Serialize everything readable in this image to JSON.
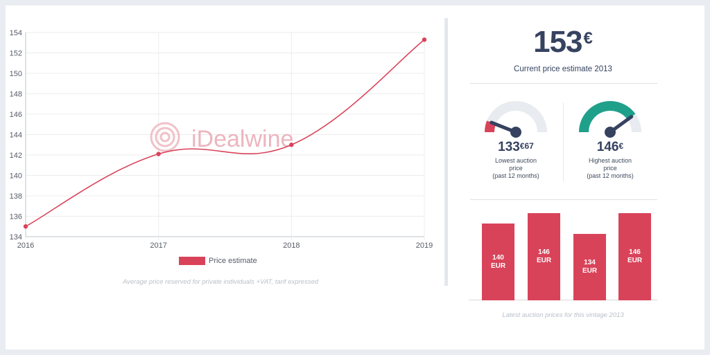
{
  "chart_data": {
    "type": "line",
    "x": [
      "2016",
      "2017",
      "2018",
      "2019"
    ],
    "series": [
      {
        "name": "Price estimate",
        "values": [
          135,
          142.1,
          143,
          153.3
        ]
      }
    ],
    "ylim": [
      134,
      154
    ],
    "yticks": [
      134,
      136,
      138,
      140,
      142,
      144,
      146,
      148,
      150,
      152,
      154
    ],
    "grid": true,
    "legend_position": "bottom",
    "color": "#d9435a"
  },
  "watermark": {
    "text": "iDealwine"
  },
  "caption_left": "Average price reserved for private individuals +VAT, tarif expressed",
  "current": {
    "value": "153",
    "currency": "€",
    "label": "Current price estimate 2013"
  },
  "lowest": {
    "integer": "133",
    "decimals": "€67",
    "label_line1": "Lowest auction",
    "label_line2": "price",
    "label_line3": "(past 12 months)",
    "gauge_level": 0.12,
    "color": "#d9435a"
  },
  "highest": {
    "integer": "146",
    "decimals": "€",
    "label_line1": "Highest auction",
    "label_line2": "price",
    "label_line3": "(past 12 months)",
    "gauge_level": 0.8,
    "color": "#1fa08a"
  },
  "auction_bars": [
    {
      "value": 140,
      "l1": "140",
      "l2": "EUR"
    },
    {
      "value": 146,
      "l1": "146",
      "l2": "EUR"
    },
    {
      "value": 134,
      "l1": "134",
      "l2": "EUR"
    },
    {
      "value": 146,
      "l1": "146",
      "l2": "EUR"
    }
  ],
  "caption_right": "Latest auction prices for this vintage 2013"
}
